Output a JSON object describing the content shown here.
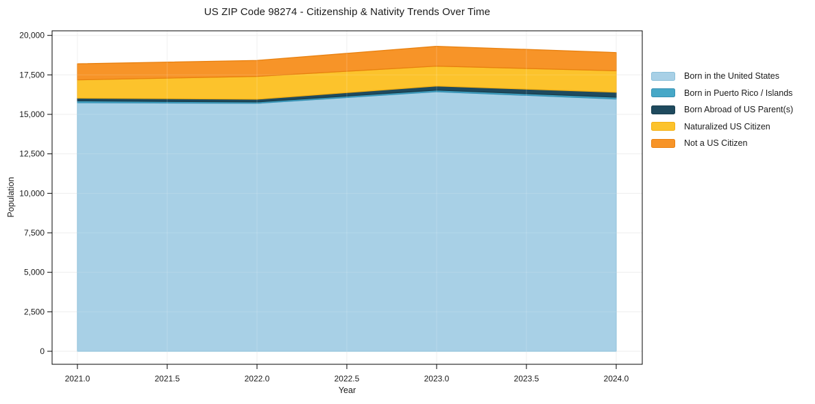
{
  "chart_data": {
    "type": "area",
    "stacked": true,
    "title": "US ZIP Code 98274 - Citizenship & Nativity Trends Over Time",
    "xlabel": "Year",
    "ylabel": "Population",
    "x": [
      2021,
      2022,
      2023,
      2024
    ],
    "series": [
      {
        "name": "Born in the United States",
        "values": [
          15740,
          15700,
          16435,
          15970
        ],
        "color": "#a8d0e6",
        "edge": "#8abfd9"
      },
      {
        "name": "Born in Puerto Rico / Islands",
        "values": [
          115,
          85,
          100,
          115
        ],
        "color": "#47a8c7",
        "edge": "#3690b3"
      },
      {
        "name": "Born Abroad of US Parent(s)",
        "values": [
          175,
          175,
          260,
          315
        ],
        "color": "#1f4a5e",
        "edge": "#183d4c"
      },
      {
        "name": "Naturalized US Citizen",
        "values": [
          1155,
          1445,
          1260,
          1360
        ],
        "color": "#fcc32c",
        "edge": "#f3af13"
      },
      {
        "name": "Not a US Citizen",
        "values": [
          1015,
          1010,
          1255,
          1155
        ],
        "color": "#f79428",
        "edge": "#e8800f"
      }
    ],
    "totals": [
      18200,
      18415,
      19310,
      18915
    ],
    "xticks": {
      "values": [
        2021,
        2021.5,
        2022,
        2022.5,
        2023,
        2023.5,
        2024
      ],
      "labels": [
        "2021.0",
        "2021.5",
        "2022.0",
        "2022.5",
        "2023.0",
        "2023.5",
        "2024.0"
      ]
    },
    "yticks": {
      "values": [
        0,
        2500,
        5000,
        7500,
        10000,
        12500,
        15000,
        17500,
        20000
      ],
      "labels": [
        "0",
        "2,500",
        "5,000",
        "7,500",
        "10,000",
        "12,500",
        "15,000",
        "17,500",
        "20,000"
      ]
    },
    "xlim": [
      2020.859,
      2024.145
    ],
    "ylim": [
      -824,
      20290
    ],
    "grid": true,
    "gridline_color": "#ececec",
    "text_color": "#1a1a1a",
    "spine_color": "#000000",
    "legend_position": "right"
  }
}
